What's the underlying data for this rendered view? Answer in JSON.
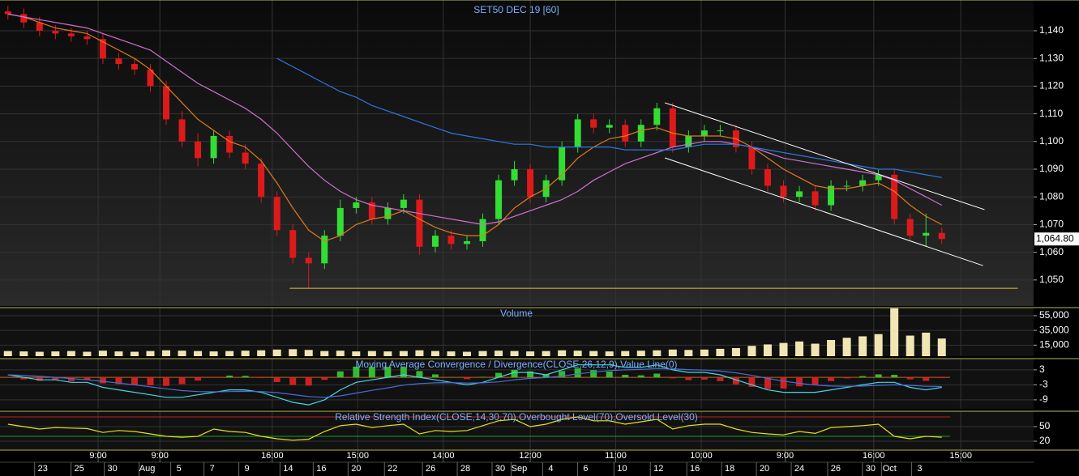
{
  "chart_data": [
    {
      "type": "candlestick",
      "title": "SET50 DEC 19   [60]",
      "open": [
        1147,
        1146,
        1143,
        1140,
        1139,
        1138,
        1137,
        1130,
        1128,
        1126,
        1120,
        1108,
        1100,
        1094,
        1102,
        1096,
        1092,
        1080,
        1068,
        1058,
        1056,
        1066,
        1076,
        1078,
        1072,
        1076,
        1079,
        1062,
        1066,
        1063,
        1064,
        1072,
        1086,
        1090,
        1080,
        1086,
        1098,
        1108,
        1105,
        1106,
        1100,
        1106,
        1112,
        1098,
        1102,
        1104,
        1104,
        1098,
        1090,
        1084,
        1080,
        1082,
        1077,
        1084,
        1084,
        1086,
        1088,
        1072,
        1066,
        1067
      ],
      "high": [
        1149,
        1148,
        1145,
        1142,
        1141,
        1140,
        1139,
        1132,
        1130,
        1128,
        1122,
        1111,
        1103,
        1104,
        1104,
        1099,
        1094,
        1082,
        1070,
        1060,
        1068,
        1079,
        1080,
        1080,
        1078,
        1081,
        1081,
        1068,
        1068,
        1066,
        1074,
        1088,
        1093,
        1092,
        1088,
        1100,
        1110,
        1110,
        1108,
        1108,
        1108,
        1114,
        1114,
        1104,
        1106,
        1106,
        1106,
        1100,
        1092,
        1086,
        1084,
        1084,
        1086,
        1086,
        1088,
        1090,
        1090,
        1074,
        1074,
        1069
      ],
      "low": [
        1144,
        1141,
        1138,
        1137,
        1136,
        1135,
        1128,
        1126,
        1124,
        1118,
        1106,
        1098,
        1091,
        1092,
        1094,
        1090,
        1078,
        1066,
        1056,
        1047,
        1054,
        1064,
        1074,
        1070,
        1070,
        1074,
        1059,
        1060,
        1061,
        1061,
        1062,
        1070,
        1084,
        1078,
        1078,
        1084,
        1096,
        1103,
        1103,
        1098,
        1098,
        1104,
        1096,
        1096,
        1100,
        1102,
        1096,
        1088,
        1082,
        1078,
        1078,
        1075,
        1075,
        1082,
        1082,
        1084,
        1070,
        1064,
        1062,
        1063
      ],
      "close": [
        1146,
        1143,
        1140,
        1139,
        1138,
        1137,
        1130,
        1128,
        1126,
        1120,
        1108,
        1100,
        1094,
        1102,
        1096,
        1092,
        1080,
        1068,
        1058,
        1056,
        1066,
        1076,
        1078,
        1072,
        1076,
        1079,
        1062,
        1066,
        1063,
        1064,
        1072,
        1086,
        1090,
        1080,
        1086,
        1098,
        1108,
        1105,
        1106,
        1100,
        1106,
        1112,
        1098,
        1102,
        1104,
        1104,
        1098,
        1090,
        1084,
        1080,
        1082,
        1077,
        1084,
        1084,
        1086,
        1088,
        1072,
        1066,
        1067,
        1064.8
      ],
      "up_color": "#33dd33",
      "down_color": "#dd1a1a",
      "series": [
        {
          "color": "#e07a1a",
          "values": [
            1146,
            1145,
            1143,
            1141,
            1140,
            1139,
            1136,
            1133,
            1130,
            1126,
            1120,
            1114,
            1108,
            1104,
            1100,
            1098,
            1093,
            1085,
            1076,
            1068,
            1064,
            1066,
            1070,
            1072,
            1073,
            1075,
            1072,
            1069,
            1067,
            1066,
            1066,
            1070,
            1076,
            1080,
            1083,
            1088,
            1094,
            1098,
            1101,
            1102,
            1104,
            1105,
            1103,
            1102,
            1102,
            1102,
            1101,
            1098,
            1094,
            1090,
            1087,
            1084,
            1083,
            1083,
            1084,
            1085,
            1082,
            1077,
            1073,
            1070
          ]
        },
        {
          "color": "#d070d0",
          "values": [
            1146,
            1145,
            1144,
            1143,
            1142,
            1141,
            1139,
            1137,
            1135,
            1133,
            1129,
            1125,
            1121,
            1118,
            1115,
            1112,
            1108,
            1103,
            1097,
            1091,
            1086,
            1082,
            1079,
            1077,
            1076,
            1075,
            1074,
            1073,
            1072,
            1071,
            1070,
            1071,
            1073,
            1075,
            1077,
            1079,
            1082,
            1086,
            1089,
            1092,
            1094,
            1096,
            1098,
            1099,
            1100,
            1100,
            1099,
            1098,
            1096,
            1094,
            1093,
            1092,
            1091,
            1090,
            1089,
            1088,
            1086,
            1083,
            1080,
            1077
          ]
        },
        {
          "color": "#2a78e0",
          "values": [
            null,
            null,
            null,
            null,
            null,
            null,
            null,
            null,
            null,
            null,
            null,
            null,
            null,
            null,
            null,
            null,
            null,
            1130,
            1127,
            1124,
            1121,
            1118,
            1116,
            1113,
            1111,
            1109,
            1107,
            1105,
            1103,
            1102,
            1101,
            1100,
            1099,
            1099,
            1098,
            1098,
            1098,
            1098,
            1098,
            1097,
            1097,
            1097,
            1097,
            1098,
            1099,
            1099,
            1099,
            1098,
            1097,
            1096,
            1095,
            1094,
            1093,
            1092,
            1091,
            1090,
            1090,
            1089,
            1088,
            1087
          ]
        }
      ],
      "trendlines": [
        {
          "color": "#ffffff",
          "x": [
            42.0,
            62.2
          ],
          "y": [
            1114,
            1075.4
          ]
        },
        {
          "color": "#ffffff",
          "x": [
            42.0,
            62.1
          ],
          "y": [
            1094.1,
            1055.2
          ]
        },
        {
          "color": "#e0c040",
          "x": [
            18.3,
            64.3
          ],
          "y": [
            1047,
            1047
          ]
        }
      ],
      "last_price": {
        "value": 1064.8,
        "label": "1,064.80"
      },
      "ylim": [
        1040.6,
        1151.1
      ],
      "yticks": [
        {
          "value": 1050,
          "label": "1,050"
        },
        {
          "value": 1060,
          "label": "1,060"
        },
        {
          "value": 1070,
          "label": "1,070"
        },
        {
          "value": 1080,
          "label": "1,080"
        },
        {
          "value": 1090,
          "label": "1,090"
        },
        {
          "value": 1100,
          "label": "1,100"
        },
        {
          "value": 1110,
          "label": "1,110"
        },
        {
          "value": 1120,
          "label": "1,120"
        },
        {
          "value": 1130,
          "label": "1,130"
        },
        {
          "value": 1140,
          "label": "1,140"
        }
      ],
      "grid": true
    },
    {
      "type": "bar",
      "title": "Volume",
      "color": "#f0e6b4",
      "values": [
        7000,
        6500,
        6000,
        6500,
        7000,
        6000,
        7500,
        6500,
        6000,
        7000,
        8000,
        7500,
        7000,
        6500,
        7000,
        7500,
        8000,
        9000,
        9500,
        8500,
        7000,
        7500,
        6500,
        7000,
        6500,
        7000,
        8000,
        7000,
        6500,
        6000,
        7000,
        7500,
        7000,
        6500,
        7000,
        8000,
        7500,
        7000,
        6500,
        7000,
        7500,
        8000,
        9000,
        8500,
        9000,
        10000,
        11000,
        14000,
        16000,
        18000,
        20000,
        17000,
        22000,
        25000,
        27000,
        30000,
        65000,
        28000,
        32000,
        24000
      ],
      "ylim": [
        0,
        66000
      ],
      "yticks": [
        {
          "value": 15000,
          "label": "15,000"
        },
        {
          "value": 35000,
          "label": "35,000"
        },
        {
          "value": 55000,
          "label": "55,000"
        }
      ],
      "grid": true
    },
    {
      "type": "macd",
      "title": "Moving Average Convergence / Divergence(CLOSE,26,12,9),Value Line(0)",
      "histogram": [
        0,
        -0.8,
        -1.4,
        -1,
        -1.5,
        -1,
        -2.4,
        -2.7,
        -3,
        -3.2,
        -3.4,
        -2.7,
        -1.3,
        -0.2,
        0.7,
        0.6,
        -0.3,
        -1.9,
        -3.1,
        -3.3,
        -1,
        2.4,
        4.3,
        4.2,
        4.2,
        4.1,
        2.5,
        1.2,
        0.1,
        -0.7,
        0.2,
        1.8,
        3,
        2.4,
        1.1,
        2.5,
        3.6,
        2.9,
        2.3,
        1,
        0.8,
        1.5,
        -0.4,
        -1.1,
        -0.9,
        -1.5,
        -2.8,
        -3.8,
        -4.6,
        -4.5,
        -3.6,
        -2.9,
        -1.5,
        -0.4,
        0.5,
        1.2,
        1,
        -0.8,
        -1.4,
        -0.3
      ],
      "up_color": "#33bb33",
      "down_color": "#cc2222",
      "series": [
        {
          "color": "#40d8e8",
          "values": [
            1,
            0,
            -1,
            -1,
            -2,
            -2,
            -4,
            -5,
            -6,
            -7,
            -8,
            -8,
            -7,
            -6,
            -5,
            -5,
            -6,
            -8,
            -10,
            -11,
            -9,
            -5,
            -2,
            -1,
            0,
            1,
            0,
            -1,
            -2,
            -3,
            -2,
            0,
            2,
            2,
            1,
            3,
            5,
            5,
            5,
            4,
            4,
            5,
            3,
            2,
            2,
            1,
            -1,
            -3,
            -5,
            -6,
            -6,
            -6,
            -5,
            -4,
            -3,
            -2,
            -2,
            -4,
            -5,
            -4
          ]
        },
        {
          "color": "#4a6cd8",
          "values": [
            1,
            0.8,
            0.4,
            0,
            -0.5,
            -1,
            -1.6,
            -2.3,
            -3,
            -3.8,
            -4.6,
            -5.3,
            -5.7,
            -5.8,
            -5.7,
            -5.6,
            -5.7,
            -6.1,
            -6.9,
            -7.7,
            -8,
            -7.4,
            -6.3,
            -5.2,
            -4.2,
            -3.1,
            -2.5,
            -2.2,
            -2.1,
            -2.3,
            -2.2,
            -1.8,
            -1,
            -0.4,
            -0.1,
            0.5,
            1.4,
            2.1,
            2.7,
            3,
            3.2,
            3.5,
            3.4,
            3.1,
            2.9,
            2.5,
            1.8,
            0.8,
            -0.4,
            -1.5,
            -2.4,
            -3.1,
            -3.5,
            -3.6,
            -3.5,
            -3.2,
            -3,
            -3.2,
            -3.6,
            -3.7
          ]
        }
      ],
      "levels": [
        {
          "value": 0,
          "color": "#c86414"
        }
      ],
      "ylim": [
        -12.6,
        7.5
      ],
      "yticks": [
        -9,
        -3,
        3
      ],
      "grid": true
    },
    {
      "type": "rsi",
      "title": "Relative Strength Index(CLOSE,14,30,70),Overbought Level(70),Oversold Level(30)",
      "series": [
        {
          "color": "#e8e020",
          "values": [
            55,
            50,
            45,
            48,
            47,
            46,
            38,
            42,
            40,
            35,
            30,
            28,
            30,
            45,
            40,
            38,
            30,
            25,
            22,
            24,
            40,
            52,
            55,
            48,
            52,
            55,
            35,
            42,
            40,
            42,
            52,
            62,
            65,
            50,
            55,
            65,
            70,
            62,
            62,
            55,
            60,
            65,
            45,
            52,
            55,
            55,
            45,
            38,
            35,
            33,
            40,
            36,
            48,
            50,
            52,
            55,
            30,
            25,
            30,
            28
          ]
        }
      ],
      "levels": [
        {
          "value": 70,
          "color": "#c02020"
        },
        {
          "value": 30,
          "color": "#20a020"
        }
      ],
      "ylim": [
        3.3,
        81.7
      ],
      "yticks": [
        20,
        50
      ],
      "grid": true
    }
  ],
  "x_axis": {
    "xlim": [
      0,
      65.3
    ],
    "time_ticks": [
      {
        "value": 6.2,
        "label": "9:00"
      },
      {
        "value": 10.1,
        "label": "9:00"
      },
      {
        "value": 17.2,
        "label": "16:00"
      },
      {
        "value": 22.6,
        "label": "15:00"
      },
      {
        "value": 28.0,
        "label": "14:00"
      },
      {
        "value": 33.5,
        "label": "12:00"
      },
      {
        "value": 38.9,
        "label": "11:00"
      },
      {
        "value": 44.3,
        "label": "10:00"
      },
      {
        "value": 49.6,
        "label": "9:00"
      },
      {
        "value": 55.2,
        "label": "16:00"
      },
      {
        "value": 60.7,
        "label": "15:00"
      }
    ],
    "date_ticks": [
      {
        "value": 2.7,
        "label": "23"
      },
      {
        "value": 5.0,
        "label": "25"
      },
      {
        "value": 7.1,
        "label": "30"
      },
      {
        "value": 9.3,
        "label": "Aug"
      },
      {
        "value": 11.3,
        "label": "5"
      },
      {
        "value": 13.4,
        "label": "7"
      },
      {
        "value": 15.6,
        "label": "9"
      },
      {
        "value": 18.2,
        "label": "14"
      },
      {
        "value": 20.3,
        "label": "16"
      },
      {
        "value": 22.5,
        "label": "20"
      },
      {
        "value": 24.8,
        "label": "22"
      },
      {
        "value": 27.2,
        "label": "26"
      },
      {
        "value": 29.4,
        "label": "28"
      },
      {
        "value": 31.6,
        "label": "30"
      },
      {
        "value": 32.8,
        "label": "Sep"
      },
      {
        "value": 34.8,
        "label": "4"
      },
      {
        "value": 37.0,
        "label": "6"
      },
      {
        "value": 39.3,
        "label": "10"
      },
      {
        "value": 41.6,
        "label": "12"
      },
      {
        "value": 43.9,
        "label": "16"
      },
      {
        "value": 46.1,
        "label": "18"
      },
      {
        "value": 48.3,
        "label": "20"
      },
      {
        "value": 50.5,
        "label": "24"
      },
      {
        "value": 52.8,
        "label": "26"
      },
      {
        "value": 55.0,
        "label": "30"
      },
      {
        "value": 56.2,
        "label": "Oct"
      },
      {
        "value": 58.1,
        "label": "3"
      }
    ]
  }
}
